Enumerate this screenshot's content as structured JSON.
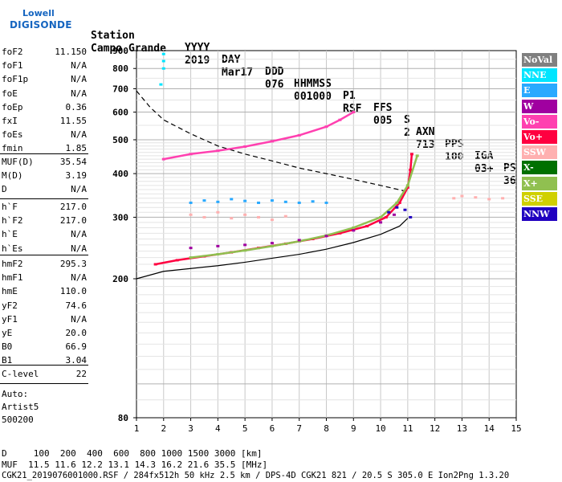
{
  "logo": {
    "line1": "Lowell",
    "line2": "DIGISONDE"
  },
  "header": {
    "row1": [
      "Station",
      "YYYY",
      "DAY",
      "DDD",
      "HHMMSS",
      "P1",
      "FFS",
      "S",
      "AXN",
      "PPS",
      "IGA",
      "PS"
    ],
    "row2": [
      "Campo Grande",
      "2019",
      "Mar17",
      "076",
      "001000",
      "RSF",
      "005",
      "2",
      "713",
      "100",
      "03+",
      "36"
    ]
  },
  "params": {
    "group1": [
      {
        "label": "foF2",
        "value": "11.150"
      },
      {
        "label": "foF1",
        "value": "N/A"
      },
      {
        "label": "foF1p",
        "value": "N/A"
      },
      {
        "label": "foE",
        "value": "N/A"
      },
      {
        "label": "foEp",
        "value": "0.36"
      },
      {
        "label": "fxI",
        "value": "11.55"
      },
      {
        "label": "foEs",
        "value": "N/A"
      },
      {
        "label": "fmin",
        "value": "1.85"
      }
    ],
    "group2": [
      {
        "label": "MUF(D)",
        "value": "35.54"
      },
      {
        "label": "M(D)",
        "value": "3.19"
      },
      {
        "label": "D",
        "value": "N/A"
      }
    ],
    "group3": [
      {
        "label": "h`F",
        "value": "217.0"
      },
      {
        "label": "h`F2",
        "value": "217.0"
      },
      {
        "label": "h`E",
        "value": "N/A"
      },
      {
        "label": "h`Es",
        "value": "N/A"
      }
    ],
    "group4": [
      {
        "label": "hmF2",
        "value": "295.3"
      },
      {
        "label": "hmF1",
        "value": "N/A"
      },
      {
        "label": "hmE",
        "value": "110.0"
      },
      {
        "label": "yF2",
        "value": "74.6"
      },
      {
        "label": "yF1",
        "value": "N/A"
      },
      {
        "label": "yE",
        "value": "20.0"
      },
      {
        "label": "B0",
        "value": "66.9"
      },
      {
        "label": "B1",
        "value": "3.04"
      }
    ],
    "group5": [
      {
        "label": "C-level",
        "value": "22"
      }
    ],
    "auto": [
      "Auto:",
      "Artist5",
      "500200"
    ]
  },
  "footer": {
    "d_row": "D     100  200  400  600  800 1000 1500 3000 [km]",
    "muf_row": "MUF  11.5 11.6 12.2 13.1 14.3 16.2 21.6 35.5 [MHz]",
    "info_row": "CGK21_2019076001000.RSF / 284fx512h 50 kHz 2.5 km / DPS-4D CGK21 821 / 20.5 S 305.0 E Ion2Png 1.3.20"
  },
  "legend": [
    {
      "label": "NoVal",
      "color": "#808080",
      "text": "#ffffff"
    },
    {
      "label": "NNE",
      "color": "#00e5ff",
      "text": "#ffffff"
    },
    {
      "label": "E",
      "color": "#29a9ff",
      "text": "#ffffff"
    },
    {
      "label": "W",
      "color": "#a000a0",
      "text": "#ffffff"
    },
    {
      "label": "Vo-",
      "color": "#ff40b0",
      "text": "#ffffff"
    },
    {
      "label": "Vo+",
      "color": "#ff0040",
      "text": "#ffffff"
    },
    {
      "label": "SSW",
      "color": "#ffb0b0",
      "text": "#ffffff"
    },
    {
      "label": "X-",
      "color": "#007000",
      "text": "#ffffff"
    },
    {
      "label": "X+",
      "color": "#90c050",
      "text": "#ffffff"
    },
    {
      "label": "SSE",
      "color": "#d0d000",
      "text": "#ffffff"
    },
    {
      "label": "NNW",
      "color": "#2000c0",
      "text": "#ffffff"
    }
  ],
  "chart_data": {
    "type": "scatter",
    "x_ticks": [
      "1",
      "2",
      "3",
      "4",
      "5",
      "6",
      "7",
      "8",
      "9",
      "10",
      "11",
      "12",
      "13",
      "14",
      "15"
    ],
    "y_ticks": [
      "80",
      "200",
      "300",
      "400",
      "500",
      "600",
      "700",
      "800",
      "900"
    ],
    "xlim": [
      1,
      15
    ],
    "y_scale": "log",
    "ylim": [
      80,
      900
    ],
    "grid": true,
    "series": [
      {
        "name": "Vo+",
        "x": [
          1.7,
          2.5,
          3.5,
          4.5,
          5.5,
          6.5,
          7.5,
          8.5,
          9.5,
          10.2,
          10.7,
          11.0,
          11.1,
          11.15
        ],
        "y": [
          220,
          226,
          232,
          238,
          245,
          252,
          260,
          270,
          283,
          300,
          330,
          365,
          410,
          455
        ]
      },
      {
        "name": "X+",
        "x": [
          3.0,
          4.0,
          5.0,
          6.0,
          7.0,
          8.0,
          9.0,
          10.0,
          10.6,
          11.0,
          11.35
        ],
        "y": [
          230,
          235,
          241,
          248,
          256,
          266,
          280,
          300,
          330,
          370,
          450
        ]
      },
      {
        "name": "W",
        "x": [
          3,
          4,
          5,
          6,
          7,
          8,
          9,
          10,
          10.5
        ],
        "y": [
          245,
          248,
          250,
          253,
          258,
          265,
          275,
          290,
          305
        ]
      },
      {
        "name": "E",
        "x": [
          3,
          3.5,
          4,
          4.5,
          5,
          5.5,
          6,
          6.5,
          7,
          7.5,
          8
        ],
        "y": [
          330,
          335,
          332,
          338,
          334,
          330,
          335,
          332,
          330,
          333,
          330
        ]
      },
      {
        "name": "SSW",
        "x": [
          3,
          3.5,
          4,
          4.5,
          5,
          5.5,
          6,
          6.5,
          12.7,
          13.0,
          13.5,
          14.0,
          14.5
        ],
        "y": [
          305,
          300,
          310,
          298,
          305,
          300,
          295,
          302,
          340,
          345,
          342,
          338,
          340
        ]
      },
      {
        "name": "Vo- (upper trace)",
        "x": [
          2.0,
          3.0,
          4.0,
          5.0,
          6.0,
          7.0,
          8.0,
          8.5,
          9.0
        ],
        "y": [
          440,
          455,
          465,
          478,
          495,
          515,
          545,
          570,
          600
        ]
      },
      {
        "name": "NNW",
        "x": [
          10.3,
          10.6,
          10.9,
          11.1
        ],
        "y": [
          310,
          320,
          315,
          300
        ]
      },
      {
        "name": "NNE",
        "x": [
          2.0,
          2.0,
          2.0,
          1.9
        ],
        "y": [
          880,
          840,
          800,
          720
        ]
      }
    ],
    "model_curves": [
      {
        "name": "dashed",
        "x": [
          1.0,
          1.5,
          2.0,
          3.0,
          4.0,
          5.0,
          6.0,
          7.0,
          8.0,
          9.0,
          10.0,
          11.0
        ],
        "y": [
          690,
          620,
          570,
          520,
          480,
          455,
          435,
          415,
          400,
          385,
          370,
          355
        ]
      },
      {
        "name": "solid",
        "x": [
          1.0,
          2.0,
          3.0,
          4.0,
          5.0,
          6.0,
          7.0,
          8.0,
          9.0,
          10.0,
          10.7,
          11.0
        ],
        "y": [
          200,
          210,
          214,
          218,
          223,
          229,
          235,
          243,
          254,
          268,
          283,
          298
        ]
      }
    ]
  }
}
